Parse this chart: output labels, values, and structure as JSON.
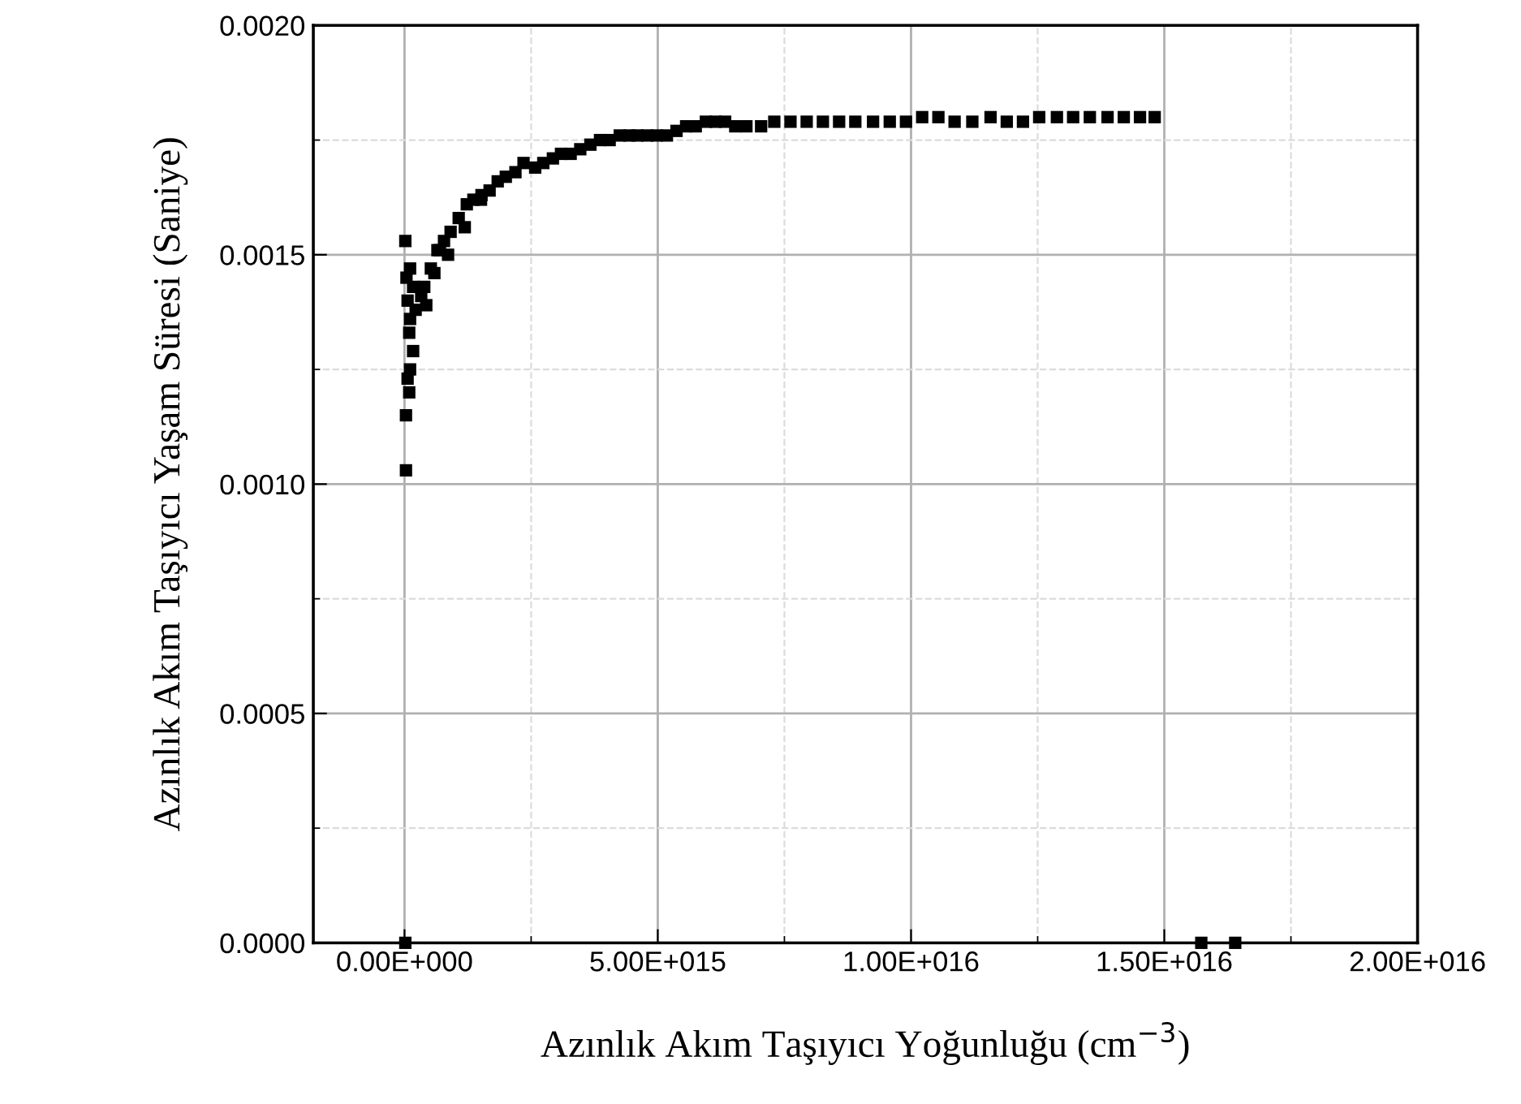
{
  "chart_data": {
    "type": "scatter",
    "xlabel": "Azınlık Akım Taşıyıcı Yoğunluğu (cm$^{−3}$)",
    "ylabel": "Azınlık Akım Taşıyıcı Yaşam Süresi (Saniye)",
    "series": [
      {
        "color": "#000000",
        "x": [
          16000000000000.0,
          110000000000000.0,
          39000000000000.0,
          170000000000000.0,
          61000000000000.0,
          330000000000000.0,
          110000000000000.0,
          220000000000000.0,
          93000000000000.0,
          170000000000000.0,
          110000000000000.0,
          61000000000000.0,
          93000000000000.0,
          29000000000000.0,
          29000000000000.0,
          430000000000000.0,
          590000000000000.0,
          700000000000000.0,
          860000000000000.0,
          1190000000000000.0,
          1510000000000000.0,
          16000000000000.0,
          1.573e+16,
          1.64e+16,
          390000000000000.0,
          520000000000000.0,
          650000000000000.0,
          780000000000000.0,
          910000000000000.0,
          1070000000000000.0,
          1230000000000000.0,
          1360000000000000.0,
          1520000000000000.0,
          1680000000000000.0,
          1840000000000000.0,
          2000000000000000.0,
          2190000000000000.0,
          2350000000000000.0,
          2580000000000000.0,
          2740000000000000.0,
          2930000000000000.0,
          3090000000000000.0,
          3280000000000000.0,
          3470000000000000.0,
          3670000000000000.0,
          3860000000000000.0,
          4050000000000000.0,
          4250000000000000.0,
          4440000000000000.0,
          4600000000000000.0,
          4790000000000000.0,
          4980000000000000.0,
          5180000000000000.0,
          5370000000000000.0,
          5560000000000000.0,
          5750000000000000.0,
          5950000000000000.0,
          6140000000000000.0,
          6330000000000000.0,
          6530000000000000.0,
          6750000000000000.0,
          7040000000000000.0,
          7300000000000000.0,
          7620000000000000.0,
          7940000000000000.0,
          8260000000000000.0,
          8580000000000000.0,
          8900000000000000.0,
          9250000000000000.0,
          9580000000000000.0,
          9900000000000000.0,
          1.022e+16,
          1.054e+16,
          1.086e+16,
          1.121e+16,
          1.157e+16,
          1.189e+16,
          1.221e+16,
          1.253e+16,
          1.288e+16,
          1.32e+16,
          1.353e+16,
          1.388e+16,
          1.42e+16,
          1.452e+16,
          1.481e+16
        ],
        "values": [
          0.00153,
          0.00147,
          0.00145,
          0.00143,
          0.0014,
          0.00141,
          0.00136,
          0.00138,
          0.00133,
          0.00129,
          0.00125,
          0.00123,
          0.0012,
          0.00115,
          0.00103,
          0.00139,
          0.00146,
          0.00151,
          0.0015,
          0.00156,
          0.00162,
          0.0,
          0.0,
          0.0,
          0.00143,
          0.00147,
          0.00151,
          0.00153,
          0.00155,
          0.00158,
          0.00161,
          0.00162,
          0.00163,
          0.00164,
          0.00166,
          0.00167,
          0.00168,
          0.0017,
          0.00169,
          0.0017,
          0.00171,
          0.00172,
          0.00172,
          0.00173,
          0.00174,
          0.00175,
          0.00175,
          0.00176,
          0.00176,
          0.00176,
          0.00176,
          0.00176,
          0.00176,
          0.00177,
          0.00178,
          0.00178,
          0.00179,
          0.00179,
          0.00179,
          0.00178,
          0.00178,
          0.00178,
          0.00179,
          0.00179,
          0.00179,
          0.00179,
          0.00179,
          0.00179,
          0.00179,
          0.00179,
          0.00179,
          0.0018,
          0.0018,
          0.00179,
          0.00179,
          0.0018,
          0.00179,
          0.00179,
          0.0018,
          0.0018,
          0.0018,
          0.0018,
          0.0018,
          0.0018,
          0.0018,
          0.0018
        ]
      }
    ],
    "xlim": [
      -1800000000000000.0,
      2e+16
    ],
    "xticks": [
      {
        "value": 0,
        "label": "0.00E+000"
      },
      {
        "value": 5000000000000000.0,
        "label": "5.00E+015"
      },
      {
        "value": 1e+16,
        "label": "1.00E+016"
      },
      {
        "value": 1.5e+16,
        "label": "1.50E+016"
      },
      {
        "value": 2e+16,
        "label": "2.00E+016"
      }
    ],
    "ylim": [
      0,
      0.002
    ],
    "yticks": [
      {
        "value": 0,
        "label": "0.0000"
      },
      {
        "value": 0.0005,
        "label": "0.0005"
      },
      {
        "value": 0.001,
        "label": "0.0010"
      },
      {
        "value": 0.0015,
        "label": "0.0015"
      },
      {
        "value": 0.002,
        "label": "0.0020"
      }
    ],
    "grid": true,
    "marker": "square"
  }
}
